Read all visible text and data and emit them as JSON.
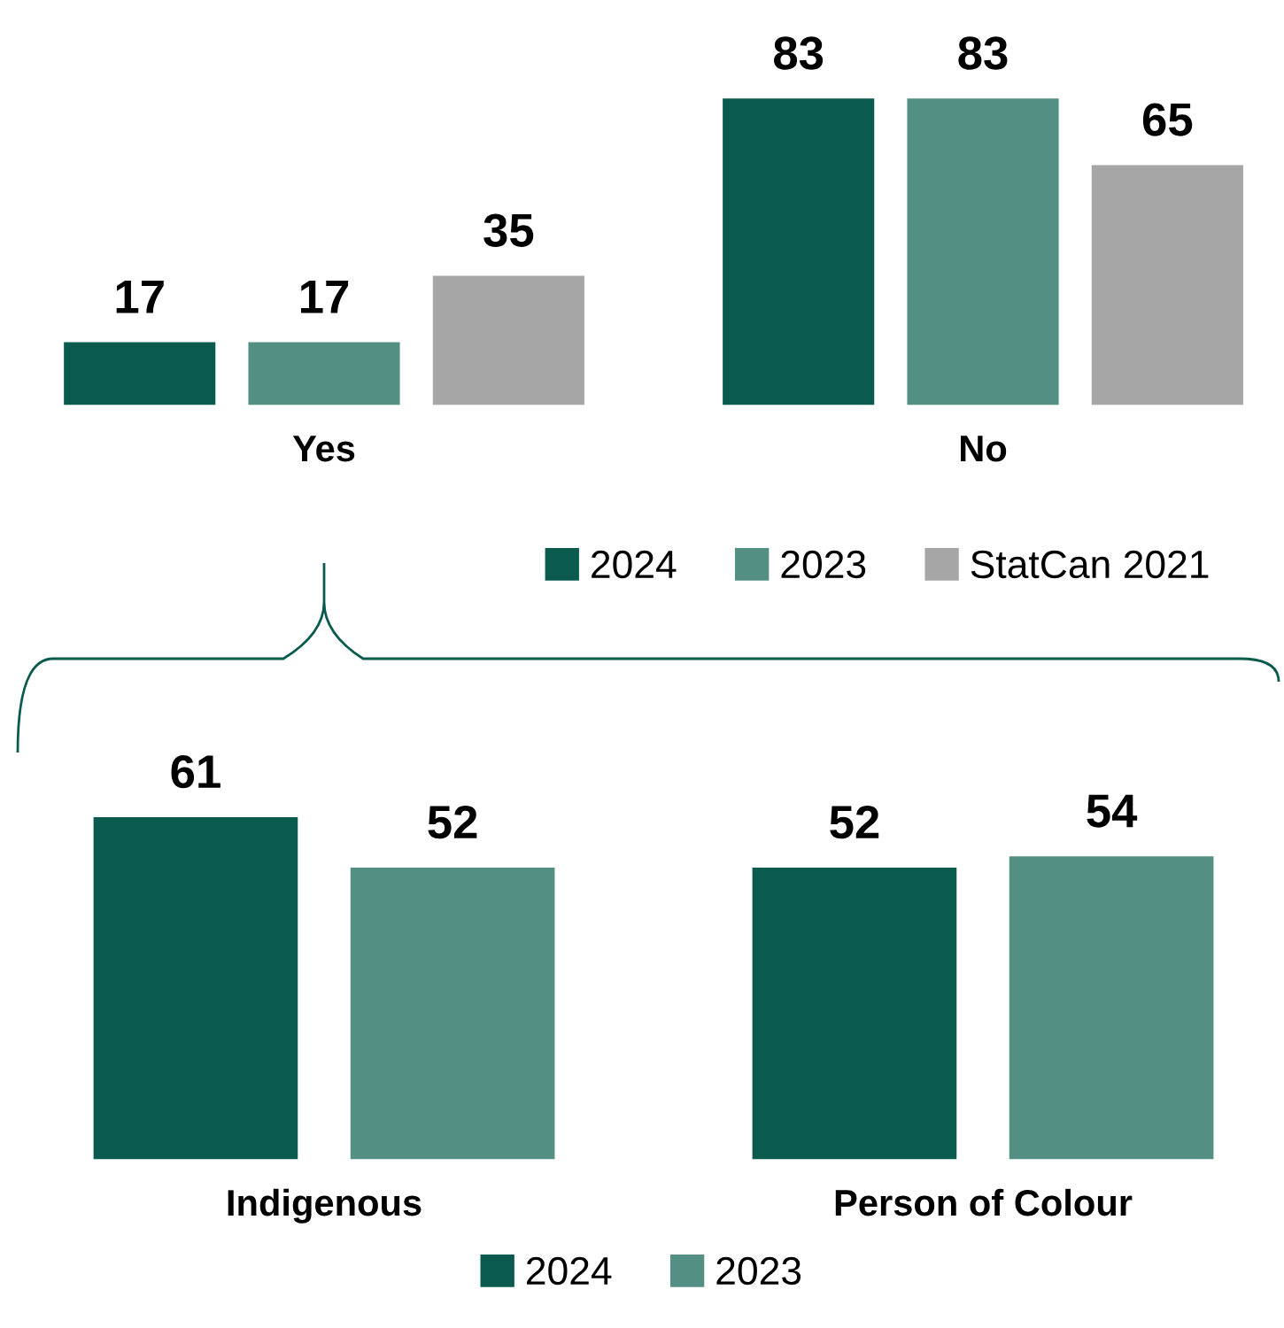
{
  "chart_data": [
    {
      "type": "bar",
      "categories": [
        "Yes",
        "No"
      ],
      "data_labels": true,
      "legend": "bottom right",
      "tick_labels": "x",
      "grid": false,
      "series": [
        {
          "name": "2024",
          "color": "#0b5a4e",
          "values": [
            17,
            83
          ]
        },
        {
          "name": "2023",
          "color": "#548f84",
          "values": [
            17,
            83
          ]
        },
        {
          "name": "StatCan 2021",
          "color": "#a6a6a6",
          "values": [
            35,
            65
          ]
        }
      ]
    },
    {
      "type": "bar",
      "categories": [
        "Indigenous",
        "Person of Colour"
      ],
      "data_labels": true,
      "legend": "bottom",
      "tick_labels": "x",
      "grid": false,
      "series": [
        {
          "name": "2024",
          "color": "#0b5a4e",
          "values": [
            61,
            52
          ]
        },
        {
          "name": "2023",
          "color": "#548f84",
          "values": [
            52,
            54
          ]
        }
      ]
    }
  ]
}
